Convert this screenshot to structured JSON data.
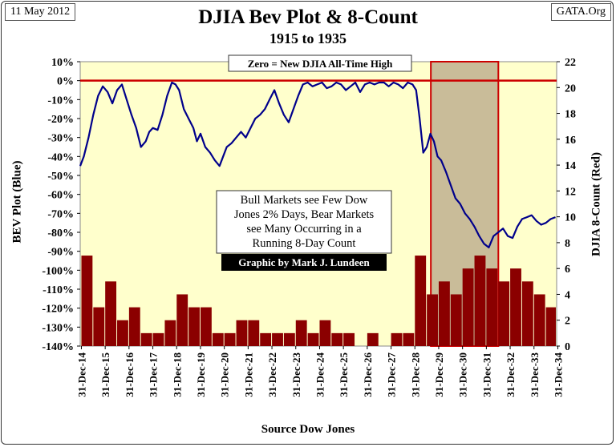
{
  "header": {
    "date": "11 May 2012",
    "source_site": "GATA.Org",
    "title": "DJIA Bev Plot & 8-Count",
    "subtitle": "1915 to 1935"
  },
  "chart_data": {
    "type": "line",
    "title": "DJIA Bev Plot & 8-Count",
    "subtitle": "1915 to 1935",
    "xlabel": "Source Dow Jones",
    "ylabel_left": "BEV Plot (Blue)",
    "ylabel_right": "DJIA 8-Count (Red)",
    "ylim_left": [
      -140,
      10
    ],
    "ylim_right": [
      0,
      22
    ],
    "xlim": [
      "1914-12-31",
      "1934-12-31"
    ],
    "left_ticks": [
      "10%",
      "0%",
      "-10%",
      "-20%",
      "-30%",
      "-40%",
      "-50%",
      "-60%",
      "-70%",
      "-80%",
      "-90%",
      "-100%",
      "-110%",
      "-120%",
      "-130%",
      "-140%"
    ],
    "right_ticks": [
      "22",
      "20",
      "18",
      "16",
      "14",
      "12",
      "10",
      "8",
      "6",
      "4",
      "2",
      "0"
    ],
    "x_ticks": [
      "31-Dec-14",
      "31-Dec-15",
      "31-Dec-16",
      "31-Dec-17",
      "31-Dec-18",
      "31-Dec-19",
      "31-Dec-20",
      "31-Dec-21",
      "31-Dec-22",
      "31-Dec-23",
      "31-Dec-24",
      "31-Dec-25",
      "31-Dec-26",
      "31-Dec-27",
      "31-Dec-28",
      "31-Dec-29",
      "31-Dec-30",
      "31-Dec-31",
      "31-Dec-32",
      "31-Dec-33",
      "31-Dec-34"
    ],
    "series": [
      {
        "name": "BEV Plot (Blue)",
        "color": "#00008b",
        "axis": "left",
        "x": [
          1914.95,
          1915.1,
          1915.3,
          1915.5,
          1915.7,
          1915.9,
          1916.1,
          1916.3,
          1916.5,
          1916.7,
          1916.9,
          1917.1,
          1917.3,
          1917.5,
          1917.7,
          1917.85,
          1918.0,
          1918.2,
          1918.4,
          1918.6,
          1918.8,
          1918.95,
          1919.1,
          1919.3,
          1919.5,
          1919.7,
          1919.85,
          1920.0,
          1920.2,
          1920.4,
          1920.6,
          1920.8,
          1920.95,
          1921.1,
          1921.3,
          1921.5,
          1921.7,
          1921.9,
          1922.1,
          1922.3,
          1922.5,
          1922.7,
          1922.9,
          1923.1,
          1923.3,
          1923.5,
          1923.7,
          1923.9,
          1924.1,
          1924.3,
          1924.5,
          1924.7,
          1924.9,
          1925.1,
          1925.3,
          1925.5,
          1925.7,
          1925.9,
          1926.1,
          1926.3,
          1926.5,
          1926.7,
          1926.9,
          1927.1,
          1927.3,
          1927.5,
          1927.7,
          1927.9,
          1928.1,
          1928.3,
          1928.5,
          1928.7,
          1928.9,
          1929.05,
          1929.2,
          1929.35,
          1929.5,
          1929.65,
          1929.8,
          1929.95,
          1930.1,
          1930.3,
          1930.5,
          1930.7,
          1930.9,
          1931.1,
          1931.3,
          1931.5,
          1931.7,
          1931.9,
          1932.1,
          1932.3,
          1932.5,
          1932.7,
          1932.9,
          1933.1,
          1933.3,
          1933.5,
          1933.7,
          1933.9,
          1934.1,
          1934.3,
          1934.5,
          1934.7,
          1934.9
        ],
        "values": [
          -45,
          -40,
          -30,
          -18,
          -8,
          -3,
          -6,
          -12,
          -5,
          -2,
          -10,
          -18,
          -25,
          -35,
          -32,
          -27,
          -25,
          -26,
          -18,
          -8,
          -1,
          -2,
          -5,
          -15,
          -20,
          -25,
          -32,
          -28,
          -35,
          -38,
          -42,
          -45,
          -40,
          -35,
          -33,
          -30,
          -27,
          -30,
          -25,
          -20,
          -18,
          -15,
          -10,
          -5,
          -12,
          -18,
          -22,
          -15,
          -8,
          -2,
          -1,
          -3,
          -2,
          -1,
          -4,
          -3,
          -1,
          -2,
          -5,
          -3,
          -1,
          -6,
          -2,
          -1,
          -2,
          -1,
          -1,
          -3,
          -1,
          -2,
          -4,
          -1,
          -2,
          -5,
          -20,
          -38,
          -35,
          -28,
          -32,
          -40,
          -42,
          -48,
          -55,
          -62,
          -65,
          -70,
          -73,
          -77,
          -82,
          -86,
          -88,
          -82,
          -80,
          -78,
          -82,
          -83,
          -77,
          -73,
          -72,
          -71,
          -74,
          -76,
          -75,
          -73,
          -72
        ]
      },
      {
        "name": "DJIA 8-Count (Red)",
        "color": "#8b0000",
        "axis": "right",
        "x": [
          1915.0,
          1915.5,
          1916.0,
          1916.5,
          1917.0,
          1917.5,
          1918.0,
          1918.5,
          1919.0,
          1919.5,
          1920.0,
          1920.5,
          1921.0,
          1921.5,
          1922.0,
          1922.5,
          1923.0,
          1923.5,
          1924.0,
          1924.5,
          1925.0,
          1925.5,
          1926.0,
          1926.5,
          1927.0,
          1927.5,
          1928.0,
          1928.5,
          1929.0,
          1929.5,
          1930.0,
          1930.5,
          1931.0,
          1931.5,
          1932.0,
          1932.5,
          1933.0,
          1933.5,
          1934.0,
          1934.5
        ],
        "values": [
          7,
          3,
          5,
          2,
          3,
          1,
          1,
          2,
          4,
          3,
          3,
          1,
          1,
          2,
          2,
          1,
          1,
          1,
          2,
          1,
          2,
          1,
          1,
          0,
          1,
          0,
          1,
          1,
          7,
          4,
          5,
          4,
          6,
          7,
          6,
          5,
          6,
          5,
          4,
          3
        ]
      },
      {
        "name": "Zero line",
        "color": "#cc0000",
        "axis": "left",
        "x": [
          1914.95,
          1934.95
        ],
        "values": [
          0,
          0
        ]
      }
    ],
    "annotations": {
      "zero_note": "Zero = New DJIA All-Time High",
      "note_lines": [
        "Bull Markets see Few Dow",
        "Jones 2% Days, Bear Markets",
        "see Many Occurring in a",
        "Running 8-Day Count"
      ],
      "credit": "Graphic by Mark J. Lundeen",
      "shaded_range": [
        "1929-09-01",
        "1932-07-01"
      ]
    },
    "colors": {
      "plot_bg": "#ffffcc",
      "shade": "#c9bc99",
      "zero_line": "#cc0000",
      "bev": "#00008b",
      "count": "#8b0000"
    },
    "grid": false,
    "legend": "none"
  }
}
